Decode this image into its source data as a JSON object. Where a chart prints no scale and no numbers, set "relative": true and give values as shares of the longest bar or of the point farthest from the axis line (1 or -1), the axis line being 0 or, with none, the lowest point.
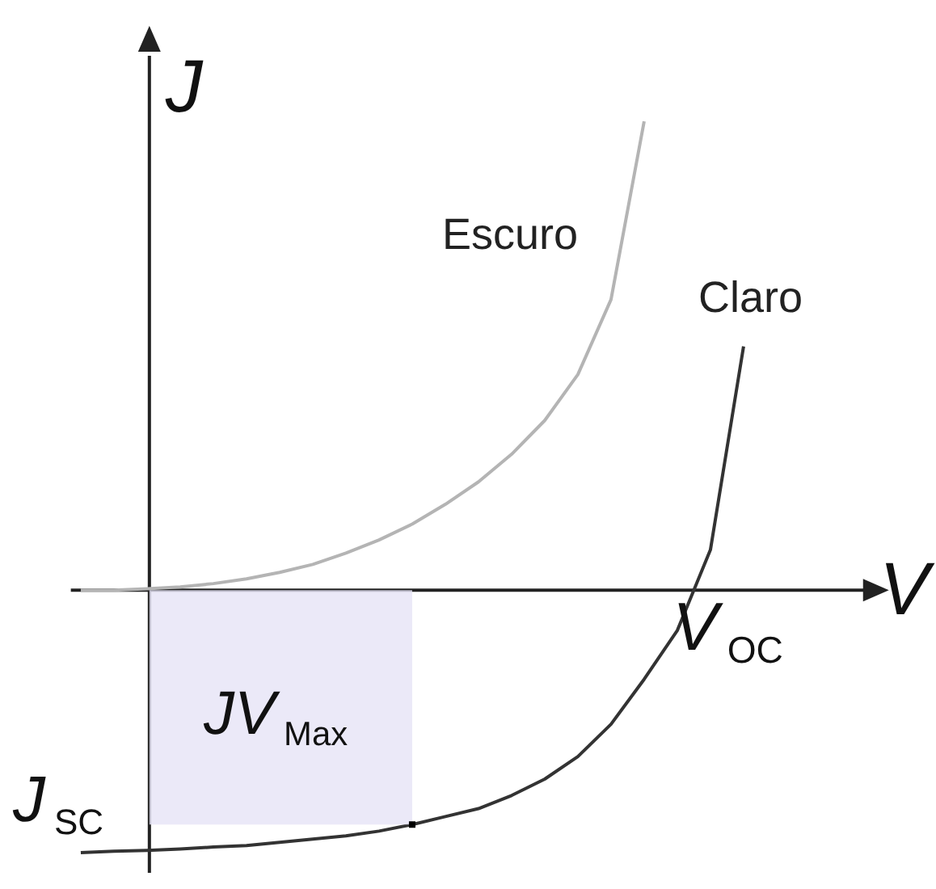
{
  "chart_data": {
    "type": "line",
    "relative": true,
    "xlabel": "V",
    "ylabel": "J",
    "categories": [
      null,
      null,
      null,
      null,
      null,
      null,
      null,
      null,
      null,
      null,
      null,
      null,
      null,
      null,
      null,
      null,
      null,
      null,
      null,
      null,
      null
    ],
    "series": [
      {
        "name": "Escuro",
        "color": "#b4b4b4",
        "values": [
          0,
          0,
          0.003,
          0.007,
          0.014,
          0.024,
          0.038,
          0.055,
          0.079,
          0.107,
          0.141,
          0.183,
          0.231,
          0.29,
          0.362,
          0.46,
          0.62,
          1,
          null,
          null,
          null
        ]
      },
      {
        "name": "Claro",
        "color": "#333333",
        "values": [
          -0.56,
          -0.557,
          -0.555,
          -0.552,
          -0.548,
          -0.545,
          -0.538,
          -0.531,
          -0.524,
          -0.514,
          -0.5,
          -0.483,
          -0.466,
          -0.438,
          -0.403,
          -0.355,
          -0.286,
          -0.19,
          -0.086,
          0.086,
          0.52
        ]
      }
    ],
    "annotations": [
      "V$_{OC}$",
      "J$_{SC}$",
      "JV$_{Max}$"
    ]
  }
}
